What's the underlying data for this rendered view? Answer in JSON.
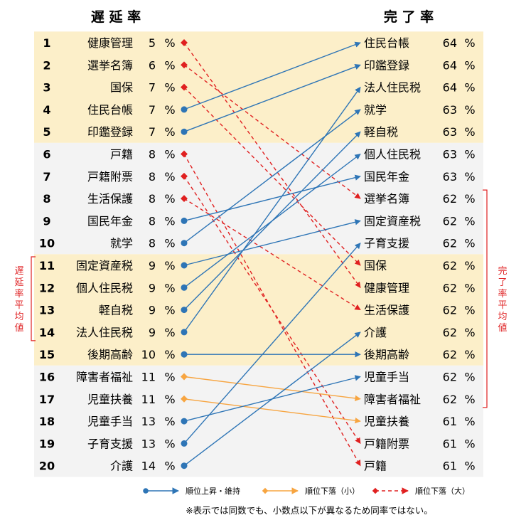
{
  "chart_data": {
    "type": "slope",
    "left_title": "遅 延 率",
    "right_title": "完 了 率",
    "unit": "%",
    "left": [
      {
        "rank": "1",
        "name": "健康管理",
        "value": 5
      },
      {
        "rank": "2",
        "name": "選挙名簿",
        "value": 6
      },
      {
        "rank": "3",
        "name": "国保",
        "value": 7
      },
      {
        "rank": "4",
        "name": "住民台帳",
        "value": 7
      },
      {
        "rank": "5",
        "name": "印鑑登録",
        "value": 7
      },
      {
        "rank": "6",
        "name": "戸籍",
        "value": 8
      },
      {
        "rank": "7",
        "name": "戸籍附票",
        "value": 8
      },
      {
        "rank": "8",
        "name": "生活保護",
        "value": 8
      },
      {
        "rank": "9",
        "name": "国民年金",
        "value": 8
      },
      {
        "rank": "10",
        "name": "就学",
        "value": 8
      },
      {
        "rank": "11",
        "name": "固定資産税",
        "value": 9
      },
      {
        "rank": "12",
        "name": "個人住民税",
        "value": 9
      },
      {
        "rank": "13",
        "name": "軽自税",
        "value": 9
      },
      {
        "rank": "14",
        "name": "法人住民税",
        "value": 9
      },
      {
        "rank": "15",
        "name": "後期高齢",
        "value": 10
      },
      {
        "rank": "16",
        "name": "障害者福祉",
        "value": 11
      },
      {
        "rank": "17",
        "name": "児童扶養",
        "value": 11
      },
      {
        "rank": "18",
        "name": "児童手当",
        "value": 13
      },
      {
        "rank": "19",
        "name": "子育支援",
        "value": 13
      },
      {
        "rank": "20",
        "name": "介護",
        "value": 14
      }
    ],
    "right": [
      {
        "name": "住民台帳",
        "value": 64
      },
      {
        "name": "印鑑登録",
        "value": 64
      },
      {
        "name": "法人住民税",
        "value": 64
      },
      {
        "name": "就学",
        "value": 63
      },
      {
        "name": "軽自税",
        "value": 63
      },
      {
        "name": "個人住民税",
        "value": 63
      },
      {
        "name": "国民年金",
        "value": 63
      },
      {
        "name": "選挙名簿",
        "value": 62
      },
      {
        "name": "固定資産税",
        "value": 62
      },
      {
        "name": "子育支援",
        "value": 62
      },
      {
        "name": "国保",
        "value": 62
      },
      {
        "name": "健康管理",
        "value": 62
      },
      {
        "name": "生活保護",
        "value": 62
      },
      {
        "name": "介護",
        "value": 62
      },
      {
        "name": "後期高齢",
        "value": 62
      },
      {
        "name": "児童手当",
        "value": 62
      },
      {
        "name": "障害者福祉",
        "value": 62
      },
      {
        "name": "児童扶養",
        "value": 61
      },
      {
        "name": "戸籍附票",
        "value": 61
      },
      {
        "name": "戸籍",
        "value": 61
      }
    ],
    "left_bracket_label": "遅延率平均値",
    "left_bracket_rows": [
      11,
      14
    ],
    "right_bracket_label": "完了率平均値",
    "right_bracket_rows": [
      8,
      17
    ],
    "row_bands": [
      {
        "from": 1,
        "to": 5,
        "color": "#fcefc9"
      },
      {
        "from": 6,
        "to": 10,
        "color": "#f3f3f3"
      },
      {
        "from": 11,
        "to": 15,
        "color": "#fcefc9"
      },
      {
        "from": 16,
        "to": 20,
        "color": "#f3f3f3"
      }
    ],
    "colors": {
      "up": "#2e75b6",
      "down_small": "#f7a541",
      "down_large": "#e02020"
    },
    "legend": [
      {
        "label": "順位上昇・維持",
        "style": "up"
      },
      {
        "label": "順位下落（小）",
        "style": "down_small"
      },
      {
        "label": "順位下落（大）",
        "style": "down_large"
      }
    ],
    "note": "※表示では同数でも、小数点以下が異なるため同率ではない。"
  }
}
